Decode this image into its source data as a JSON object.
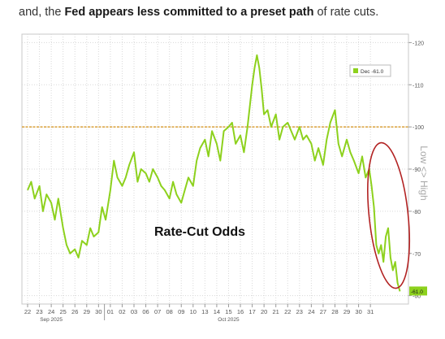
{
  "intro": {
    "part1": "and, the ",
    "bold1": "Fed appears less committed to a preset path",
    "part2": " of rate cuts."
  },
  "colors": {
    "series": "#8dd11d",
    "reference_line": "#d9a13a",
    "grid": "#d8d8d8",
    "annotation_ellipse": "#b22222",
    "axis_text": "#555555"
  },
  "chart_data": {
    "type": "line",
    "title": "Rate-Cut Odds",
    "legend": {
      "label": "Dec -61.0",
      "placement": "top-right"
    },
    "last_value_label": "-61.0",
    "right_axis_label": "Low <> High",
    "grid": true,
    "ylim": [
      58,
      122
    ],
    "yticks": [
      60,
      70,
      80,
      90,
      100,
      110,
      120
    ],
    "ytick_labels": [
      "-60",
      "-70",
      "-80",
      "-90",
      "-100",
      "-110",
      "-120"
    ],
    "reference_line": 100,
    "x_tick_labels": [
      "22",
      "23",
      "24",
      "25",
      "26",
      "29",
      "30",
      "01",
      "02",
      "03",
      "06",
      "07",
      "08",
      "09",
      "10",
      "13",
      "14",
      "15",
      "16",
      "17",
      "20",
      "21",
      "22",
      "23",
      "24",
      "27",
      "28",
      "29",
      "30",
      "31"
    ],
    "month_labels": [
      {
        "label": "Sep 2025",
        "at_tick": 2
      },
      {
        "label": "Oct 2025",
        "at_tick": 17
      }
    ],
    "series": [
      {
        "name": "Dec",
        "points": [
          [
            0,
            85
          ],
          [
            0.3,
            87
          ],
          [
            0.6,
            83
          ],
          [
            1,
            86
          ],
          [
            1.3,
            80
          ],
          [
            1.6,
            84
          ],
          [
            2,
            82
          ],
          [
            2.3,
            78
          ],
          [
            2.6,
            83
          ],
          [
            3,
            76
          ],
          [
            3.3,
            72
          ],
          [
            3.6,
            70
          ],
          [
            4,
            71
          ],
          [
            4.3,
            69
          ],
          [
            4.6,
            73
          ],
          [
            5,
            72
          ],
          [
            5.3,
            76
          ],
          [
            5.6,
            74
          ],
          [
            6,
            75
          ],
          [
            6.3,
            81
          ],
          [
            6.6,
            78
          ],
          [
            7,
            85
          ],
          [
            7.3,
            92
          ],
          [
            7.6,
            88
          ],
          [
            8,
            86
          ],
          [
            8.3,
            88
          ],
          [
            8.6,
            91
          ],
          [
            9,
            94
          ],
          [
            9.3,
            87
          ],
          [
            9.6,
            90
          ],
          [
            10,
            89
          ],
          [
            10.3,
            87
          ],
          [
            10.6,
            90
          ],
          [
            11,
            88
          ],
          [
            11.3,
            86
          ],
          [
            11.6,
            85
          ],
          [
            12,
            83
          ],
          [
            12.3,
            87
          ],
          [
            12.6,
            84
          ],
          [
            13,
            82
          ],
          [
            13.3,
            85
          ],
          [
            13.6,
            88
          ],
          [
            14,
            86
          ],
          [
            14.3,
            92
          ],
          [
            14.6,
            95
          ],
          [
            15,
            97
          ],
          [
            15.3,
            93
          ],
          [
            15.6,
            99
          ],
          [
            16,
            96
          ],
          [
            16.3,
            92
          ],
          [
            16.6,
            99
          ],
          [
            17,
            100
          ],
          [
            17.3,
            101
          ],
          [
            17.6,
            96
          ],
          [
            18,
            98
          ],
          [
            18.3,
            94
          ],
          [
            18.6,
            100
          ],
          [
            19,
            110
          ],
          [
            19.2,
            114
          ],
          [
            19.4,
            117
          ],
          [
            19.6,
            114
          ],
          [
            19.8,
            109
          ],
          [
            20,
            103
          ],
          [
            20.3,
            104
          ],
          [
            20.6,
            100
          ],
          [
            21,
            103
          ],
          [
            21.3,
            97
          ],
          [
            21.6,
            100
          ],
          [
            22,
            101
          ],
          [
            22.3,
            99
          ],
          [
            22.6,
            97
          ],
          [
            23,
            100
          ],
          [
            23.3,
            97
          ],
          [
            23.6,
            98
          ],
          [
            24,
            96
          ],
          [
            24.3,
            92
          ],
          [
            24.6,
            95
          ],
          [
            25,
            91
          ],
          [
            25.3,
            97
          ],
          [
            25.6,
            101
          ],
          [
            26,
            104
          ],
          [
            26.3,
            96
          ],
          [
            26.6,
            93
          ],
          [
            27,
            97
          ],
          [
            27.3,
            94
          ],
          [
            27.6,
            92
          ],
          [
            28,
            89
          ],
          [
            28.3,
            93
          ],
          [
            28.6,
            88
          ],
          [
            28.9,
            90
          ],
          [
            29.1,
            86
          ],
          [
            29.3,
            81
          ],
          [
            29.5,
            72
          ],
          [
            29.7,
            70
          ],
          [
            29.9,
            72
          ],
          [
            30.1,
            68
          ],
          [
            30.3,
            74
          ],
          [
            30.5,
            76
          ],
          [
            30.7,
            69
          ],
          [
            30.9,
            66
          ],
          [
            31.1,
            68
          ],
          [
            31.3,
            63
          ],
          [
            31.5,
            61
          ]
        ]
      }
    ]
  }
}
